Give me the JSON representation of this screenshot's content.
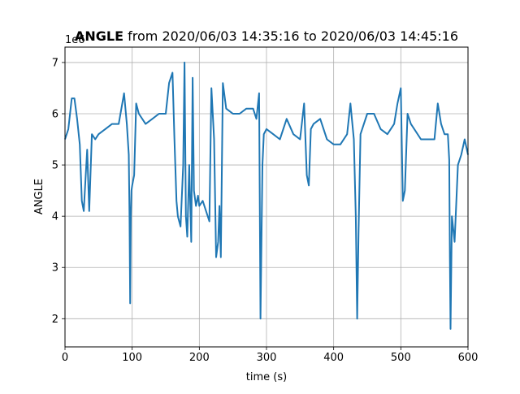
{
  "chart_data": {
    "type": "line",
    "title_bold": "ANGLE",
    "title_rest": " from 2020/06/03 14:35:16 to 2020/06/03 14:45:16",
    "xlabel": "time (s)",
    "ylabel": "ANGLE",
    "y_offset_label": "1e6",
    "xlim": [
      0,
      600
    ],
    "ylim": [
      1.45,
      7.3
    ],
    "xticks": [
      0,
      100,
      200,
      300,
      400,
      500,
      600
    ],
    "xtick_labels": [
      "0",
      "100",
      "200",
      "300",
      "400",
      "500",
      "600"
    ],
    "yticks": [
      2,
      3,
      4,
      5,
      6,
      7
    ],
    "ytick_labels": [
      "2",
      "3",
      "4",
      "5",
      "6",
      "7"
    ],
    "grid": true,
    "line_color": "#1f77b4",
    "series": [
      {
        "x": [
          0,
          5,
          10,
          14,
          18,
          22,
          25,
          28,
          30,
          33,
          36,
          40,
          45,
          50,
          60,
          70,
          80,
          88,
          92,
          95,
          96,
          97,
          98,
          99,
          100,
          103,
          106,
          110,
          120,
          130,
          140,
          150,
          155,
          160,
          163,
          166,
          168,
          172,
          176,
          178,
          180,
          182,
          185,
          188,
          190,
          192,
          195,
          198,
          200,
          205,
          210,
          215,
          218,
          222,
          225,
          228,
          230,
          232,
          235,
          240,
          250,
          260,
          270,
          280,
          285,
          289,
          291,
          292,
          294,
          296,
          300,
          310,
          320,
          330,
          340,
          350,
          356,
          360,
          363,
          366,
          370,
          380,
          390,
          400,
          410,
          420,
          425,
          430,
          433,
          435,
          437,
          440,
          450,
          460,
          470,
          480,
          490,
          495,
          500,
          503,
          506,
          510,
          515,
          520,
          530,
          540,
          550,
          555,
          560,
          565,
          570,
          572,
          573,
          574,
          576,
          580,
          585,
          590,
          595,
          600
        ],
        "y": [
          5.5,
          5.7,
          6.3,
          6.3,
          5.9,
          5.4,
          4.3,
          4.1,
          4.6,
          5.3,
          4.1,
          5.6,
          5.5,
          5.6,
          5.7,
          5.8,
          5.8,
          6.4,
          5.8,
          5.2,
          4.0,
          2.3,
          4.0,
          4.5,
          4.6,
          4.8,
          6.2,
          6.0,
          5.8,
          5.9,
          6.0,
          6.0,
          6.6,
          6.8,
          5.5,
          4.3,
          4.0,
          3.8,
          5.0,
          7.0,
          4.0,
          3.6,
          5.0,
          3.5,
          6.7,
          4.5,
          4.2,
          4.4,
          4.2,
          4.3,
          4.1,
          3.9,
          6.5,
          5.5,
          3.2,
          3.5,
          4.2,
          3.2,
          6.6,
          6.1,
          6.0,
          6.0,
          6.1,
          6.1,
          5.9,
          6.4,
          2.0,
          3.0,
          5.0,
          5.6,
          5.7,
          5.6,
          5.5,
          5.9,
          5.6,
          5.5,
          6.2,
          4.8,
          4.6,
          5.7,
          5.8,
          5.9,
          5.5,
          5.4,
          5.4,
          5.6,
          6.2,
          5.5,
          4.0,
          2.0,
          3.7,
          5.6,
          6.0,
          6.0,
          5.7,
          5.6,
          5.8,
          6.2,
          6.5,
          4.3,
          4.5,
          6.0,
          5.8,
          5.7,
          5.5,
          5.5,
          5.5,
          6.2,
          5.8,
          5.6,
          5.6,
          5.1,
          3.2,
          1.8,
          4.0,
          3.5,
          5.0,
          5.2,
          5.5,
          5.2
        ]
      }
    ]
  }
}
